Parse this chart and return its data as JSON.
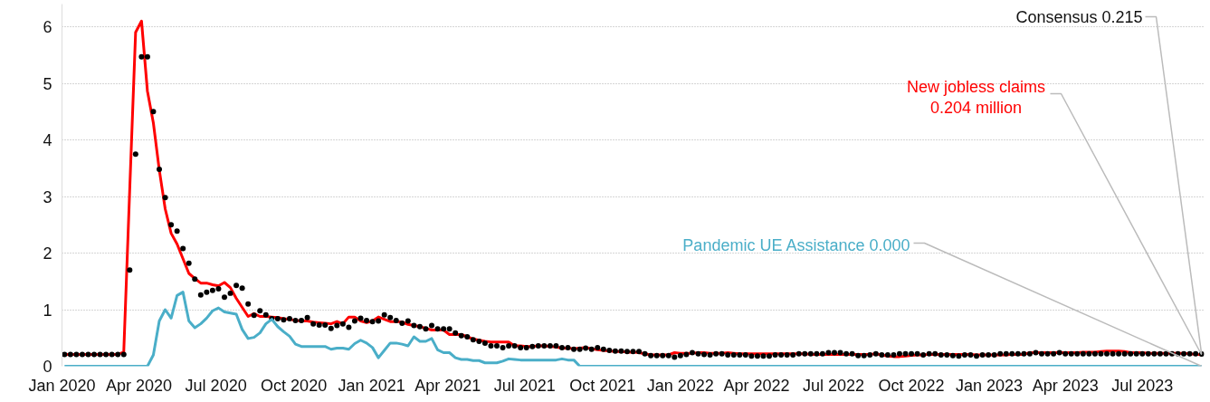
{
  "chart_data": {
    "type": "line",
    "x": [
      "2020-01-04",
      "2020-01-11",
      "2020-01-18",
      "2020-01-25",
      "2020-02-01",
      "2020-02-08",
      "2020-02-15",
      "2020-02-22",
      "2020-02-29",
      "2020-03-07",
      "2020-03-14",
      "2020-03-21",
      "2020-03-28",
      "2020-04-04",
      "2020-04-11",
      "2020-04-18",
      "2020-04-25",
      "2020-05-02",
      "2020-05-09",
      "2020-05-16",
      "2020-05-23",
      "2020-05-30",
      "2020-06-06",
      "2020-06-13",
      "2020-06-20",
      "2020-06-27",
      "2020-07-04",
      "2020-07-11",
      "2020-07-18",
      "2020-07-25",
      "2020-08-01",
      "2020-08-08",
      "2020-08-15",
      "2020-08-22",
      "2020-08-29",
      "2020-09-05",
      "2020-09-12",
      "2020-09-19",
      "2020-09-26",
      "2020-10-03",
      "2020-10-10",
      "2020-10-17",
      "2020-10-24",
      "2020-10-31",
      "2020-11-07",
      "2020-11-14",
      "2020-11-21",
      "2020-11-28",
      "2020-12-05",
      "2020-12-12",
      "2020-12-19",
      "2020-12-26",
      "2021-01-02",
      "2021-01-09",
      "2021-01-16",
      "2021-01-23",
      "2021-01-30",
      "2021-02-06",
      "2021-02-13",
      "2021-02-20",
      "2021-02-27",
      "2021-03-06",
      "2021-03-13",
      "2021-03-20",
      "2021-03-27",
      "2021-04-03",
      "2021-04-10",
      "2021-04-17",
      "2021-04-24",
      "2021-05-01",
      "2021-05-08",
      "2021-05-15",
      "2021-05-22",
      "2021-05-29",
      "2021-06-05",
      "2021-06-12",
      "2021-06-19",
      "2021-06-26",
      "2021-07-03",
      "2021-07-10",
      "2021-07-17",
      "2021-07-24",
      "2021-07-31",
      "2021-08-07",
      "2021-08-14",
      "2021-08-21",
      "2021-08-28",
      "2021-09-04",
      "2021-09-11",
      "2021-09-18",
      "2021-09-25",
      "2021-10-02",
      "2021-10-09",
      "2021-10-16",
      "2021-10-23",
      "2021-10-30",
      "2021-11-06",
      "2021-11-13",
      "2021-11-20",
      "2021-11-27",
      "2021-12-04",
      "2021-12-11",
      "2021-12-18",
      "2021-12-25",
      "2022-01-01",
      "2022-01-08",
      "2022-01-15",
      "2022-01-22",
      "2022-01-29",
      "2022-02-05",
      "2022-02-12",
      "2022-02-19",
      "2022-02-26",
      "2022-03-05",
      "2022-03-12",
      "2022-03-19",
      "2022-03-26",
      "2022-04-02",
      "2022-04-09",
      "2022-04-16",
      "2022-04-23",
      "2022-04-30",
      "2022-05-07",
      "2022-05-14",
      "2022-05-21",
      "2022-05-28",
      "2022-06-04",
      "2022-06-11",
      "2022-06-18",
      "2022-06-25",
      "2022-07-02",
      "2022-07-09",
      "2022-07-16",
      "2022-07-23",
      "2022-07-30",
      "2022-08-06",
      "2022-08-13",
      "2022-08-20",
      "2022-08-27",
      "2022-09-03",
      "2022-09-10",
      "2022-09-17",
      "2022-09-24",
      "2022-10-01",
      "2022-10-08",
      "2022-10-15",
      "2022-10-22",
      "2022-10-29",
      "2022-11-05",
      "2022-11-12",
      "2022-11-19",
      "2022-11-26",
      "2022-12-03",
      "2022-12-10",
      "2022-12-17",
      "2022-12-24",
      "2022-12-31",
      "2023-01-07",
      "2023-01-14",
      "2023-01-21",
      "2023-01-28",
      "2023-02-04",
      "2023-02-11",
      "2023-02-18",
      "2023-02-25",
      "2023-03-04",
      "2023-03-11",
      "2023-03-18",
      "2023-03-25",
      "2023-04-01",
      "2023-04-08",
      "2023-04-15",
      "2023-04-22",
      "2023-04-29",
      "2023-05-06",
      "2023-05-13",
      "2023-05-20",
      "2023-05-27",
      "2023-06-03",
      "2023-06-10",
      "2023-06-17",
      "2023-06-24",
      "2023-07-01",
      "2023-07-08",
      "2023-07-15",
      "2023-07-22",
      "2023-07-29",
      "2023-08-05",
      "2023-08-12",
      "2023-08-19",
      "2023-08-26",
      "2023-09-02",
      "2023-09-09"
    ],
    "series": [
      {
        "color": "#ff0000",
        "values": [
          0.21,
          0.21,
          0.21,
          0.21,
          0.21,
          0.21,
          0.21,
          0.21,
          0.21,
          0.21,
          0.25,
          3.1,
          5.9,
          6.1,
          4.86,
          4.3,
          3.47,
          2.78,
          2.35,
          2.16,
          1.9,
          1.64,
          1.55,
          1.47,
          1.47,
          1.44,
          1.42,
          1.48,
          1.39,
          1.2,
          1.04,
          0.88,
          0.93,
          0.88,
          0.88,
          0.87,
          0.86,
          0.84,
          0.83,
          0.81,
          0.8,
          0.8,
          0.78,
          0.77,
          0.76,
          0.75,
          0.79,
          0.75,
          0.87,
          0.87,
          0.8,
          0.77,
          0.8,
          0.87,
          0.83,
          0.79,
          0.79,
          0.78,
          0.74,
          0.72,
          0.7,
          0.67,
          0.64,
          0.64,
          0.64,
          0.56,
          0.56,
          0.56,
          0.52,
          0.48,
          0.46,
          0.44,
          0.43,
          0.43,
          0.43,
          0.43,
          0.36,
          0.36,
          0.35,
          0.35,
          0.36,
          0.36,
          0.35,
          0.34,
          0.32,
          0.32,
          0.31,
          0.32,
          0.33,
          0.31,
          0.29,
          0.28,
          0.27,
          0.26,
          0.26,
          0.25,
          0.25,
          0.24,
          0.22,
          0.2,
          0.2,
          0.2,
          0.2,
          0.24,
          0.23,
          0.23,
          0.23,
          0.24,
          0.24,
          0.23,
          0.23,
          0.23,
          0.24,
          0.23,
          0.22,
          0.22,
          0.22,
          0.22,
          0.22,
          0.22,
          0.22,
          0.22,
          0.22,
          0.22,
          0.22,
          0.22,
          0.21,
          0.21,
          0.21,
          0.21,
          0.21,
          0.21,
          0.21,
          0.21,
          0.21,
          0.21,
          0.21,
          0.22,
          0.2,
          0.18,
          0.17,
          0.17,
          0.18,
          0.19,
          0.2,
          0.2,
          0.21,
          0.21,
          0.21,
          0.21,
          0.21,
          0.21,
          0.21,
          0.21,
          0.2,
          0.2,
          0.2,
          0.2,
          0.2,
          0.2,
          0.21,
          0.21,
          0.21,
          0.24,
          0.24,
          0.24,
          0.24,
          0.24,
          0.24,
          0.24,
          0.24,
          0.24,
          0.25,
          0.25,
          0.25,
          0.26,
          0.27,
          0.27,
          0.27,
          0.26,
          0.24,
          0.24,
          0.24,
          0.23,
          0.23,
          0.23,
          0.23,
          0.23,
          0.23,
          0.23,
          0.22,
          0.21,
          0.204
        ]
      },
      {
        "type": "scatter",
        "marker": "circle",
        "color": "#000000",
        "values": [
          0.21,
          0.21,
          0.21,
          0.21,
          0.21,
          0.21,
          0.21,
          0.21,
          0.21,
          0.21,
          0.21,
          1.7,
          3.75,
          5.47,
          5.47,
          4.5,
          3.48,
          2.98,
          2.5,
          2.39,
          2.08,
          1.82,
          1.54,
          1.26,
          1.31,
          1.34,
          1.37,
          1.22,
          1.29,
          1.43,
          1.38,
          1.1,
          0.9,
          0.98,
          0.91,
          0.84,
          0.84,
          0.82,
          0.84,
          0.81,
          0.81,
          0.86,
          0.75,
          0.73,
          0.73,
          0.67,
          0.72,
          0.75,
          0.69,
          0.8,
          0.85,
          0.81,
          0.79,
          0.8,
          0.91,
          0.86,
          0.81,
          0.76,
          0.8,
          0.72,
          0.7,
          0.66,
          0.72,
          0.66,
          0.66,
          0.66,
          0.59,
          0.54,
          0.52,
          0.47,
          0.44,
          0.41,
          0.36,
          0.36,
          0.33,
          0.36,
          0.36,
          0.33,
          0.33,
          0.35,
          0.36,
          0.36,
          0.36,
          0.36,
          0.33,
          0.33,
          0.3,
          0.3,
          0.32,
          0.3,
          0.33,
          0.3,
          0.28,
          0.27,
          0.27,
          0.26,
          0.26,
          0.26,
          0.22,
          0.19,
          0.19,
          0.19,
          0.19,
          0.16,
          0.19,
          0.21,
          0.24,
          0.22,
          0.21,
          0.2,
          0.22,
          0.22,
          0.2,
          0.2,
          0.2,
          0.2,
          0.18,
          0.18,
          0.18,
          0.18,
          0.2,
          0.2,
          0.2,
          0.2,
          0.22,
          0.22,
          0.22,
          0.22,
          0.22,
          0.24,
          0.24,
          0.24,
          0.22,
          0.22,
          0.19,
          0.19,
          0.2,
          0.22,
          0.2,
          0.2,
          0.2,
          0.22,
          0.22,
          0.22,
          0.22,
          0.2,
          0.22,
          0.22,
          0.2,
          0.2,
          0.19,
          0.18,
          0.2,
          0.2,
          0.18,
          0.2,
          0.2,
          0.2,
          0.22,
          0.22,
          0.22,
          0.22,
          0.22,
          0.22,
          0.24,
          0.22,
          0.22,
          0.22,
          0.24,
          0.22,
          0.22,
          0.22,
          0.22,
          0.22,
          0.22,
          0.22,
          0.22,
          0.22,
          0.22,
          0.22,
          0.22,
          0.22,
          0.22,
          0.22,
          0.22,
          0.22,
          0.22,
          0.22,
          0.22,
          0.22,
          0.22,
          0.22,
          0.215
        ]
      },
      {
        "color": "#4aaec8",
        "values": [
          0,
          0,
          0,
          0,
          0,
          0,
          0,
          0,
          0,
          0,
          0,
          0,
          0,
          0,
          0,
          0.2,
          0.8,
          1.0,
          0.85,
          1.25,
          1.31,
          0.8,
          0.68,
          0.75,
          0.85,
          0.98,
          1.03,
          0.96,
          0.94,
          0.92,
          0.65,
          0.49,
          0.51,
          0.59,
          0.75,
          0.83,
          0.7,
          0.61,
          0.53,
          0.39,
          0.35,
          0.35,
          0.35,
          0.35,
          0.35,
          0.3,
          0.32,
          0.32,
          0.3,
          0.4,
          0.46,
          0.41,
          0.33,
          0.15,
          0.28,
          0.41,
          0.41,
          0.39,
          0.36,
          0.52,
          0.44,
          0.44,
          0.49,
          0.29,
          0.24,
          0.24,
          0.15,
          0.12,
          0.12,
          0.1,
          0.1,
          0.06,
          0.06,
          0.06,
          0.09,
          0.13,
          0.12,
          0.11,
          0.11,
          0.11,
          0.11,
          0.11,
          0.11,
          0.11,
          0.13,
          0.11,
          0.11,
          0,
          0,
          0,
          0,
          0,
          0,
          0,
          0,
          0,
          0,
          0,
          0,
          0,
          0,
          0,
          0,
          0,
          0,
          0,
          0,
          0,
          0,
          0,
          0,
          0,
          0,
          0,
          0,
          0,
          0,
          0,
          0,
          0,
          0,
          0,
          0,
          0,
          0,
          0,
          0,
          0,
          0,
          0,
          0,
          0,
          0,
          0,
          0,
          0,
          0,
          0,
          0,
          0,
          0,
          0,
          0,
          0,
          0,
          0,
          0,
          0,
          0,
          0,
          0,
          0,
          0,
          0,
          0,
          0,
          0,
          0,
          0,
          0,
          0,
          0,
          0,
          0,
          0,
          0,
          0,
          0,
          0,
          0,
          0,
          0,
          0,
          0,
          0,
          0,
          0,
          0,
          0,
          0,
          0,
          0,
          0,
          0,
          0,
          0,
          0,
          0,
          0,
          0,
          0,
          0,
          0
        ]
      }
    ],
    "annotations": [
      {
        "text": "New jobless claims\n0.204 million",
        "x": "2023-09-09",
        "y": 0.204
      },
      {
        "text": "Consensus 0.215",
        "x": "2023-09-09",
        "y": 0.215
      },
      {
        "text": "Pandemic UE Assistance 0.000",
        "x": "2023-09-09",
        "y": 0
      }
    ],
    "xlim": [
      "2020-01-01",
      "2023-09-12"
    ],
    "xticks": [
      {
        "value": "2020-01-01",
        "label": "Jan 2020"
      },
      {
        "value": "2020-04-01",
        "label": "Apr 2020"
      },
      {
        "value": "2020-07-01",
        "label": "Jul 2020"
      },
      {
        "value": "2020-10-01",
        "label": "Oct 2020"
      },
      {
        "value": "2021-01-01",
        "label": "Jan 2021"
      },
      {
        "value": "2021-04-01",
        "label": "Apr 2021"
      },
      {
        "value": "2021-07-01",
        "label": "Jul 2021"
      },
      {
        "value": "2021-10-01",
        "label": "Oct 2021"
      },
      {
        "value": "2022-01-01",
        "label": "Jan 2022"
      },
      {
        "value": "2022-04-01",
        "label": "Apr 2022"
      },
      {
        "value": "2022-07-01",
        "label": "Jul 2022"
      },
      {
        "value": "2022-10-01",
        "label": "Oct 2022"
      },
      {
        "value": "2023-01-01",
        "label": "Jan 2023"
      },
      {
        "value": "2023-04-01",
        "label": "Apr 2023"
      },
      {
        "value": "2023-07-01",
        "label": "Jul 2023"
      }
    ],
    "ylim": [
      0,
      6.4
    ],
    "yticks": [
      0,
      1,
      2,
      3,
      4,
      5,
      6
    ],
    "grid": "y"
  }
}
